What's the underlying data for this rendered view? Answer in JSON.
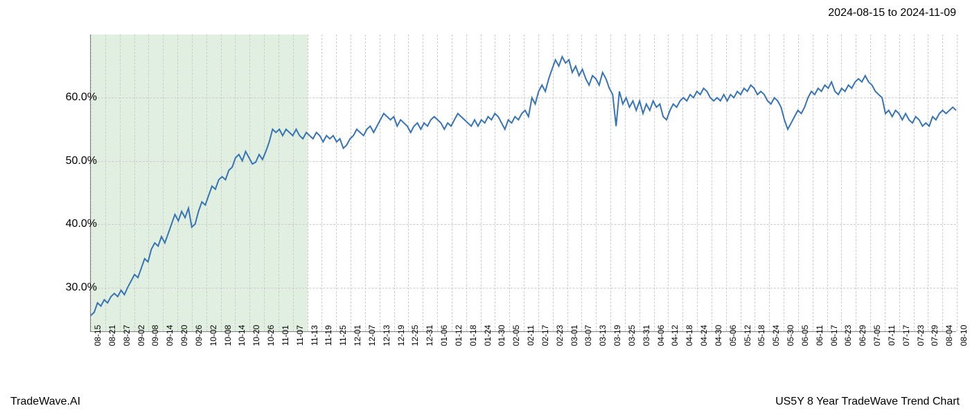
{
  "header": {
    "date_range": "2024-08-15 to 2024-11-09"
  },
  "footer": {
    "brand": "TradeWave.AI",
    "chart_title": "US5Y 8 Year TradeWave Trend Chart"
  },
  "chart": {
    "type": "line",
    "background_color": "#ffffff",
    "line_color": "#3674b5",
    "line_width": 2,
    "grid_color": "#cccccc",
    "grid_style": "dashed",
    "highlight_region": {
      "fill_color": "#d4e8d4",
      "opacity": 0.7,
      "x_start_index": 0,
      "x_end_index": 15
    },
    "y_axis": {
      "min": 23,
      "max": 70,
      "ticks": [
        30,
        40,
        50,
        60
      ],
      "tick_format": "percent",
      "label_fontsize": 16,
      "label_color": "#000000"
    },
    "x_axis": {
      "labels": [
        "08-15",
        "08-21",
        "08-27",
        "09-02",
        "09-08",
        "09-14",
        "09-20",
        "09-26",
        "10-02",
        "10-08",
        "10-14",
        "10-20",
        "10-26",
        "11-01",
        "11-07",
        "11-13",
        "11-19",
        "11-25",
        "12-01",
        "12-07",
        "12-13",
        "12-19",
        "12-25",
        "12-31",
        "01-06",
        "01-12",
        "01-18",
        "01-24",
        "01-30",
        "02-05",
        "02-11",
        "02-17",
        "02-23",
        "03-01",
        "03-07",
        "03-13",
        "03-19",
        "03-25",
        "03-31",
        "04-06",
        "04-12",
        "04-18",
        "04-24",
        "04-30",
        "05-06",
        "05-12",
        "05-18",
        "05-24",
        "05-30",
        "06-05",
        "06-11",
        "06-17",
        "06-23",
        "06-29",
        "07-05",
        "07-11",
        "07-17",
        "07-23",
        "07-29",
        "08-04",
        "08-10"
      ],
      "label_fontsize": 12,
      "label_color": "#000000",
      "label_rotation": -90
    },
    "series": {
      "name": "US5Y",
      "values": [
        25.5,
        26.0,
        27.5,
        27.0,
        28.0,
        27.5,
        28.5,
        29.0,
        28.5,
        29.5,
        28.8,
        30.0,
        31.0,
        32.0,
        31.5,
        33.0,
        34.5,
        34.0,
        36.0,
        37.0,
        36.5,
        38.0,
        37.0,
        38.5,
        40.0,
        41.5,
        40.5,
        42.0,
        41.0,
        42.5,
        39.5,
        40.0,
        42.0,
        43.5,
        43.0,
        44.5,
        46.0,
        45.5,
        47.0,
        47.5,
        47.0,
        48.5,
        49.0,
        50.5,
        51.0,
        50.0,
        51.5,
        50.5,
        49.5,
        49.8,
        51.0,
        50.2,
        51.5,
        53.0,
        55.0,
        54.5,
        55.0,
        54.0,
        55.0,
        54.5,
        54.0,
        55.0,
        54.0,
        53.5,
        54.5,
        54.0,
        53.5,
        54.5,
        54.0,
        53.0,
        54.0,
        53.5,
        54.0,
        53.0,
        53.5,
        52.0,
        52.5,
        53.5,
        54.0,
        55.0,
        54.5,
        54.0,
        55.0,
        55.5,
        54.5,
        55.5,
        56.5,
        57.5,
        57.0,
        56.5,
        57.0,
        55.5,
        56.5,
        56.0,
        55.5,
        54.5,
        55.5,
        56.0,
        55.0,
        56.0,
        55.5,
        56.5,
        57.0,
        56.5,
        56.0,
        55.0,
        56.0,
        55.5,
        56.5,
        57.5,
        57.0,
        56.5,
        56.0,
        55.5,
        56.5,
        55.5,
        56.5,
        56.0,
        57.0,
        56.5,
        57.5,
        57.0,
        56.0,
        55.0,
        56.5,
        56.0,
        57.0,
        56.5,
        57.5,
        58.0,
        57.0,
        60.0,
        59.0,
        61.0,
        62.0,
        61.0,
        63.0,
        64.5,
        66.0,
        65.0,
        66.5,
        65.5,
        66.0,
        64.0,
        65.0,
        63.5,
        64.5,
        63.0,
        62.0,
        63.5,
        63.0,
        62.0,
        64.0,
        63.0,
        61.5,
        60.5,
        55.5,
        61.0,
        59.0,
        60.0,
        58.5,
        59.5,
        58.0,
        59.5,
        57.5,
        59.0,
        58.0,
        59.5,
        58.5,
        59.0,
        57.0,
        56.5,
        58.0,
        59.0,
        58.5,
        59.5,
        60.0,
        59.5,
        60.5,
        60.0,
        61.0,
        60.5,
        61.5,
        61.0,
        60.0,
        59.5,
        60.0,
        59.5,
        60.5,
        59.5,
        60.5,
        60.0,
        61.0,
        60.5,
        61.5,
        61.0,
        62.0,
        61.5,
        60.5,
        61.0,
        60.5,
        59.5,
        59.0,
        60.0,
        59.5,
        58.5,
        56.5,
        55.0,
        56.0,
        57.0,
        58.0,
        57.5,
        58.5,
        60.0,
        61.0,
        60.5,
        61.5,
        61.0,
        62.0,
        61.5,
        62.5,
        61.0,
        60.5,
        61.5,
        61.0,
        62.0,
        61.5,
        62.5,
        63.0,
        62.5,
        63.5,
        62.5,
        62.0,
        61.0,
        60.5,
        60.0,
        57.5,
        58.0,
        57.0,
        58.0,
        57.5,
        56.5,
        57.5,
        56.5,
        56.0,
        57.0,
        56.5,
        55.5,
        56.0,
        55.5,
        57.0,
        56.5,
        57.5,
        58.0,
        57.5,
        58.0,
        58.5,
        58.0
      ]
    }
  }
}
